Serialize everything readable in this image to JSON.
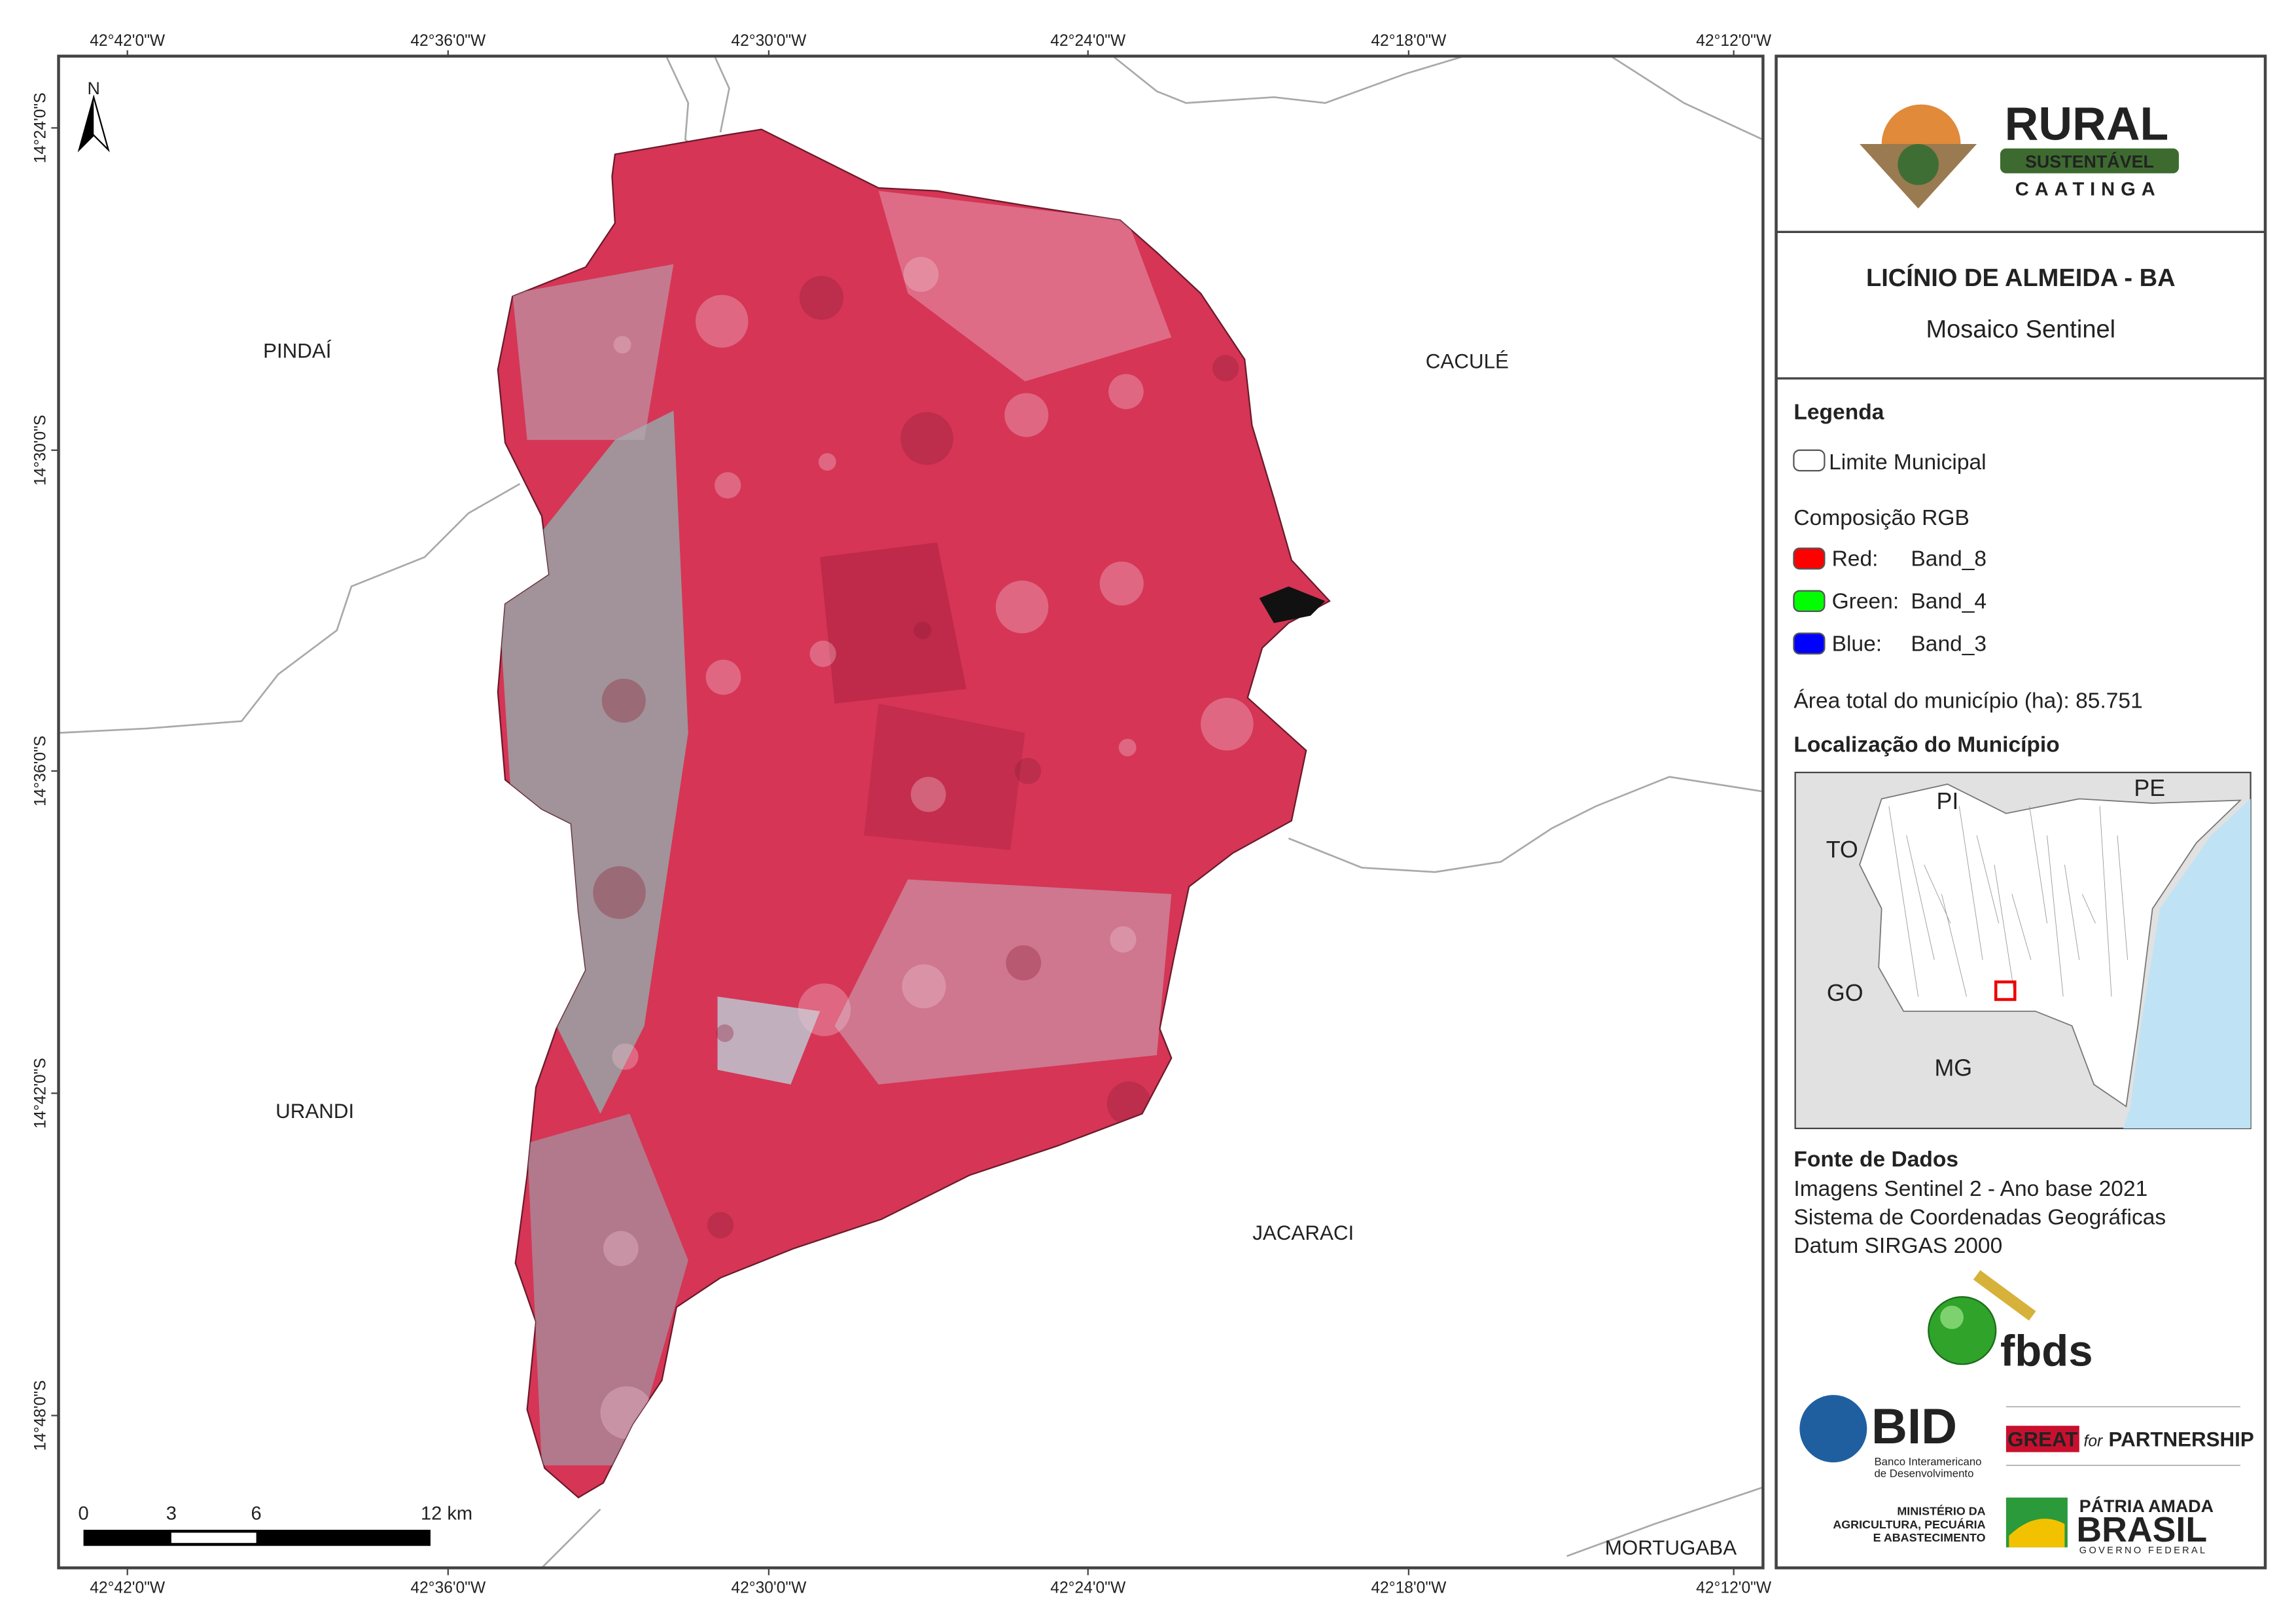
{
  "graticule": {
    "longitudes": [
      "42°42'0\"W",
      "42°36'0\"W",
      "42°30'0\"W",
      "42°24'0\"W",
      "42°18'0\"W",
      "42°12'0\"W"
    ],
    "latitudes": [
      "14°24'0\"S",
      "14°30'0\"S",
      "14°36'0\"S",
      "14°42'0\"S",
      "14°48'0\"S"
    ]
  },
  "map": {
    "north_arrow": "N",
    "places": [
      "PINDAÍ",
      "CACULÉ",
      "URANDI",
      "JACARACI",
      "MORTUGABA"
    ],
    "scale_bar": [
      "0",
      "3",
      "6",
      "12 km"
    ]
  },
  "logo": {
    "title": "RURAL",
    "subtitle": "SUSTENTÁVEL",
    "tagline": "CAATINGA"
  },
  "header": {
    "title": "LICÍNIO DE ALMEIDA - BA",
    "subtitle": "Mosaico Sentinel"
  },
  "legend": {
    "title": "Legenda",
    "boundary": "Limite Municipal",
    "rgb_title": "Composição RGB",
    "bands": [
      {
        "channel": "Red:",
        "band": "Band_8"
      },
      {
        "channel": "Green:",
        "band": "Band_4"
      },
      {
        "channel": "Blue:",
        "band": "Band_3"
      }
    ],
    "area": "Área total do município (ha): 85.751"
  },
  "location": {
    "title": "Localização do Município",
    "states": [
      "PI",
      "PE",
      "TO",
      "GO",
      "MG"
    ]
  },
  "sources": {
    "title": "Fonte de Dados",
    "lines": [
      "Imagens Sentinel 2 - Ano base 2021",
      "Sistema de Coordenadas Geográficas",
      "Datum SIRGAS 2000"
    ]
  },
  "partners": {
    "fbds": "fbds",
    "bid": "BID",
    "bid_name": [
      "Banco Interamericano",
      "de Desenvolvimento"
    ],
    "great": "GREAT",
    "great_for": "for",
    "partnership": "PARTNERSHIP",
    "ministry": [
      "MINISTÉRIO DA",
      "AGRICULTURA, PECUÁRIA",
      "E ABASTECIMENTO"
    ],
    "brasil_top": "PÁTRIA AMADA",
    "brasil": "BRASIL",
    "brasil_gov": "GOVERNO FEDERAL"
  }
}
